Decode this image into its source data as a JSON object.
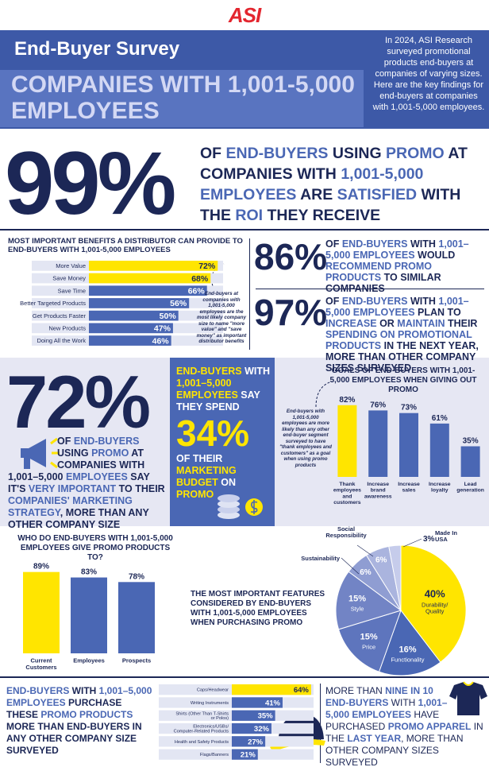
{
  "header": {
    "logo": "ASI",
    "survey": "End-Buyer Survey",
    "title": "COMPANIES WITH 1,001-5,000 EMPLOYEES",
    "intro": "In 2024, ASI Research surveyed promotional products end-buyers at companies of varying sizes. Here are the key findings for end-buyers at companies with 1,001-5,000 employees."
  },
  "hero": {
    "stat": "99%",
    "text": [
      "OF ",
      "END-BUYERS",
      " USING ",
      "PROMO",
      " AT COMPANIES WITH ",
      "1,001-5,000 EMPLOYEES",
      " ARE ",
      "SATISFIED",
      " WITH THE ",
      "ROI",
      " THEY RECEIVE"
    ]
  },
  "stat_86": {
    "stat": "86%",
    "text": [
      "OF ",
      "END-BUYERS",
      " WITH ",
      "1,001–5,000 EMPLOYEES",
      " WOULD ",
      "RECOMMEND PROMO PRODUCTS",
      " TO SIMILAR COMPANIES"
    ]
  },
  "stat_97": {
    "stat": "97%",
    "text": [
      "OF ",
      "END-BUYERS",
      " WITH ",
      "1,001–5,000 EMPLOYEES",
      " PLAN TO ",
      "INCREASE",
      " OR ",
      "MAINTAIN",
      " THEIR ",
      "SPENDING ON PROMOTIONAL PRODUCTS",
      " IN THE NEXT YEAR, MORE THAN OTHER COMPANY SIZES SURVEYED"
    ]
  },
  "stat_72": {
    "stat": "72%",
    "text": [
      "OF ",
      "END-BUYERS",
      " USING ",
      "PROMO",
      " AT COMPANIES WITH 1,001–5,000 ",
      "EMPLOYEES",
      " SAY IT'S ",
      "VERY IMPORTANT",
      " TO THEIR ",
      "COMPANIES' MARKETING STRATEGY",
      ", MORE THAN ANY OTHER COMPANY SIZE"
    ]
  },
  "stat_34": {
    "before": [
      "END-BUYERS",
      " WITH ",
      "1,001–5,000 EMPLOYEES",
      " SAY THEY SPEND"
    ],
    "stat": "34%",
    "after": [
      "OF THEIR ",
      "MARKETING BUDGET",
      " ON ",
      "PROMO"
    ]
  },
  "purchase": {
    "text": [
      "END-BUYERS",
      " WITH ",
      "1,001–5,000 EMPLOYEES",
      " PURCHASE THESE ",
      "PROMO PRODUCTS",
      " MORE THAN END-BUYERS IN ANY OTHER COMPANY SIZE SURVEYED"
    ]
  },
  "apparel": {
    "text": [
      "MORE THAN ",
      "NINE IN 10 END-BUYERS",
      " WITH ",
      "1,001–5,000 EMPLOYEES",
      " HAVE PURCHASED ",
      "PROMO APPAREL",
      " IN THE ",
      "LAST YEAR",
      ", MORE THAN OTHER COMPANY SIZES SURVEYED"
    ]
  },
  "chart_data": [
    {
      "type": "hbar",
      "title": "MOST IMPORTANT BENEFITS A DISTRIBUTOR CAN PROVIDE TO END-BUYERS WITH 1,001-5,000 EMPLOYEES",
      "categories": [
        "More Value",
        "Save Money",
        "Save Time",
        "Better Targeted Products",
        "Get Products Faster",
        "New Products",
        "Doing All the Work"
      ],
      "values": [
        72,
        68,
        66,
        56,
        50,
        47,
        46
      ],
      "value_labels": [
        "72%",
        "68%",
        "66%",
        "56%",
        "50%",
        "47%",
        "46%"
      ],
      "colors": [
        "#ffe500",
        "#ffe500",
        "#4a67b4",
        "#4a67b4",
        "#4a67b4",
        "#4a67b4",
        "#4a67b4"
      ],
      "xlim": [
        0,
        75
      ],
      "annotation": "End-buyers at companies with 1,001-5,000 employees are the most likely company size to name \"more value\" and \"save money\" as important distributor benefits"
    },
    {
      "type": "bar",
      "title": "GOALS OF END-BUYERS WITH 1,001-5,000 EMPLOYEES WHEN GIVING OUT PROMO",
      "categories": [
        "Thank employees and customers",
        "Increase brand awareness",
        "Increase sales",
        "Increase loyalty",
        "Lead generation"
      ],
      "values": [
        82,
        76,
        73,
        61,
        35
      ],
      "value_labels": [
        "82%",
        "76%",
        "73%",
        "61%",
        "35%"
      ],
      "colors": [
        "#ffe500",
        "#4a67b4",
        "#4a67b4",
        "#4a67b4",
        "#4a67b4"
      ],
      "ylim": [
        0,
        90
      ],
      "annotation": "End-buyers with 1,001-5,000 employees are more likely than any other end-buyer segment surveyed to have \"thank employees and customers\" as a goal when using promo products"
    },
    {
      "type": "bar",
      "title": "WHO DO END-BUYERS WITH 1,001-5,000 EMPLOYEES GIVE PROMO PRODUCTS TO?",
      "categories": [
        "Current Customers",
        "Employees",
        "Prospects"
      ],
      "values": [
        89,
        83,
        78
      ],
      "value_labels": [
        "89%",
        "83%",
        "78%"
      ],
      "colors": [
        "#ffe500",
        "#4a67b4",
        "#4a67b4"
      ],
      "ylim": [
        0,
        100
      ]
    },
    {
      "type": "pie",
      "title": "THE MOST IMPORTANT FEATURES CONSIDERED BY END-BUYERS WITH 1,001-5,000 EMPLOYEES WHEN PURCHASING PROMO",
      "categories": [
        "Durability/ Quality",
        "Functionality",
        "Price",
        "Style",
        "Sustainability",
        "Social Responsibility",
        "Made In USA"
      ],
      "values": [
        40,
        16,
        15,
        15,
        6,
        6,
        3
      ],
      "value_labels": [
        "40%",
        "16%",
        "15%",
        "15%",
        "6%",
        "6%",
        "3%"
      ],
      "colors": [
        "#ffe500",
        "#4a67b4",
        "#5e75bd",
        "#7284c5",
        "#8f9dd2",
        "#aab4de",
        "#c6cceb"
      ]
    },
    {
      "type": "hbar",
      "categories": [
        "Caps/Headwear",
        "Writing Instruments",
        "Shirts (Other Than T-Shirts or Polos)",
        "Electronics/USBs/ Computer-Related Products",
        "Health and Safety Products",
        "Flags/Banners"
      ],
      "values": [
        64,
        41,
        35,
        32,
        27,
        21
      ],
      "value_labels": [
        "64%",
        "41%",
        "35%",
        "32%",
        "27%",
        "21%"
      ],
      "colors": [
        "#ffe500",
        "#4a67b4",
        "#4a67b4",
        "#4a67b4",
        "#4a67b4",
        "#4a67b4"
      ],
      "xlim": [
        0,
        66
      ]
    }
  ]
}
